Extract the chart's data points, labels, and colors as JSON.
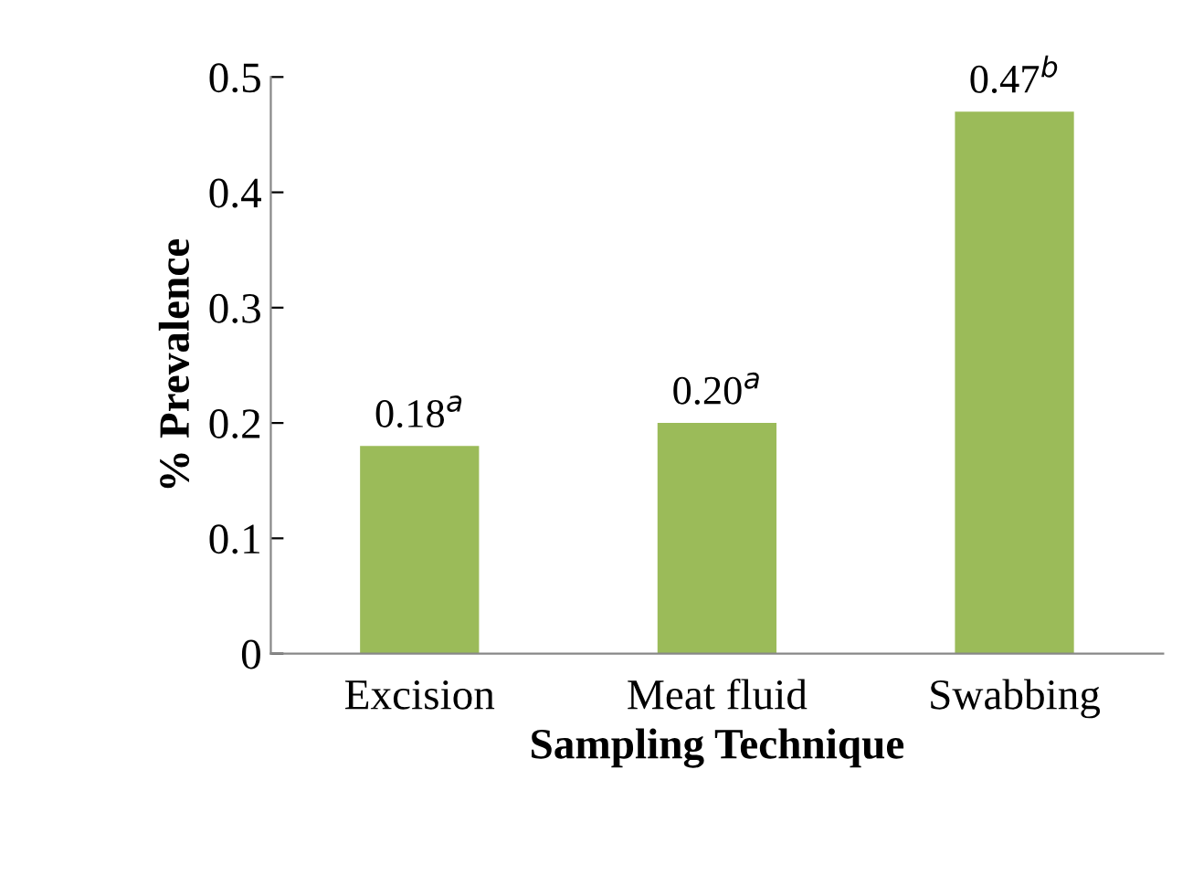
{
  "chart_data": {
    "type": "bar",
    "xlabel": "Sampling Technique",
    "ylabel": "% Prevalence",
    "categories": [
      "Excision",
      "Meat fluid",
      "Swabbing"
    ],
    "values": [
      0.18,
      0.2,
      0.47
    ],
    "value_labels": [
      "0.18$^{a}$",
      "0.20$^{a}$",
      "0.47$^{b}$"
    ],
    "color": "#9bbb59",
    "ylim": [
      0,
      0.5
    ],
    "yticks": [
      0,
      0.1,
      0.2,
      0.3,
      0.4,
      0.5
    ],
    "grid": false,
    "legend": false
  }
}
